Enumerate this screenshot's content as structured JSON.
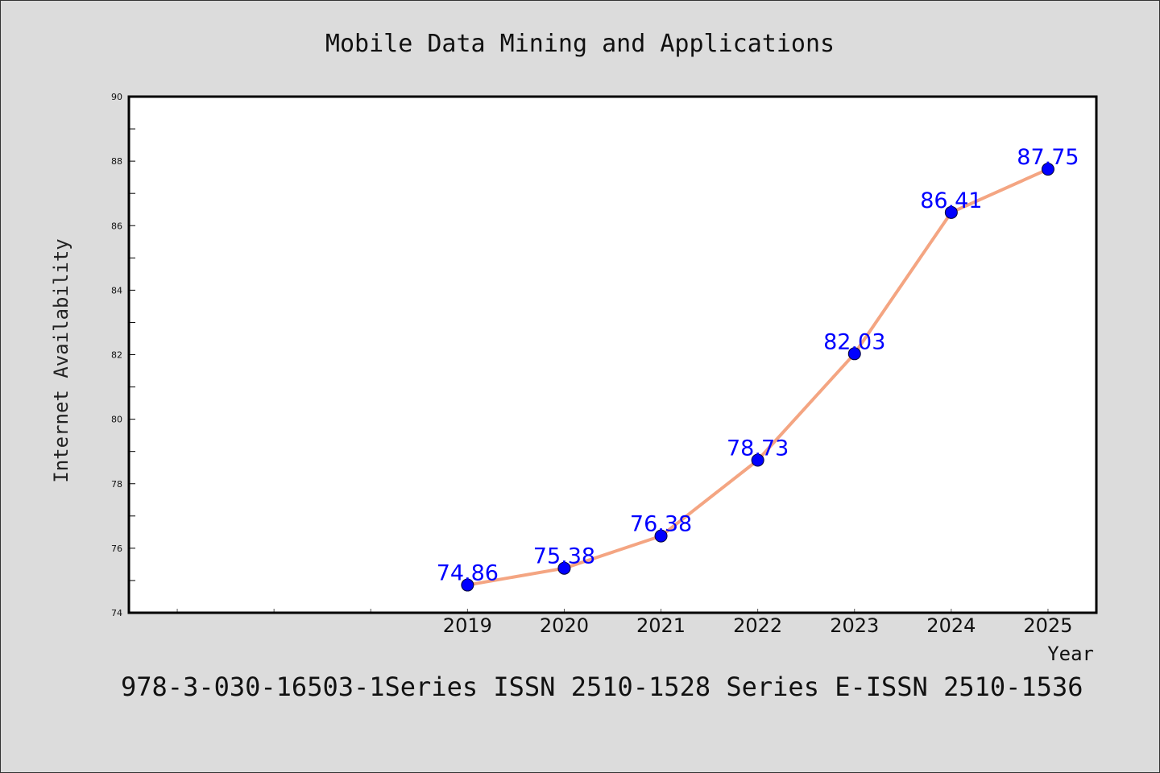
{
  "chart_data": {
    "type": "line",
    "title": "Mobile Data Mining and Applications",
    "xlabel": "Year",
    "ylabel": "Internet Availability",
    "x": [
      2019,
      2020,
      2021,
      2022,
      2023,
      2024,
      2025
    ],
    "series": [
      {
        "values": [
          74.86,
          75.38,
          76.38,
          78.73,
          82.03,
          86.41,
          87.75
        ]
      }
    ],
    "ylim": [
      74,
      90
    ],
    "yticks": [
      74,
      76,
      78,
      80,
      82,
      84,
      86,
      88,
      90
    ],
    "xticks": [
      2019,
      2020,
      2021,
      2022,
      2023,
      2024,
      2025
    ],
    "xlim_start": 2015.5,
    "xlim_end": 2025.5,
    "grid": false,
    "line_color": "#f4a582",
    "marker_color": "#0000ff",
    "label_color": "#0000ff"
  },
  "footer": "978-3-030-16503-1Series ISSN 2510-1528 Series E-ISSN 2510-1536"
}
